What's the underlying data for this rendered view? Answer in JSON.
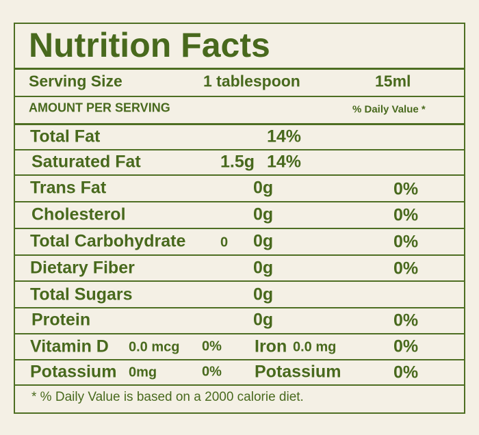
{
  "title": "Nutrition Facts",
  "serving": {
    "label": "Serving Size",
    "amount": "1 tablespoon",
    "volume": "15ml"
  },
  "amount_header": "AMOUNT PER SERVING",
  "dv_header": "% Daily Value *",
  "rows": [
    [
      "Total Fat",
      "14%"
    ],
    [
      "Saturated Fat",
      "1.5g",
      "14%"
    ],
    [
      "Trans Fat",
      "0g",
      "0%"
    ],
    [
      "Cholesterol",
      "0g",
      "0%"
    ],
    [
      "Total Carbohydrate",
      "0",
      "0g",
      "0%"
    ],
    [
      "Dietary Fiber",
      "0g",
      "0%"
    ],
    [
      "Total Sugars",
      "0g"
    ],
    [
      "Protein",
      "0g",
      "0%"
    ],
    [
      "Vitamin D",
      "0.0 mcg",
      "0%",
      "Iron",
      "0.0 mg",
      "0%"
    ],
    [
      "Potassium",
      "0mg",
      "0%",
      "Potassium",
      "0%"
    ]
  ],
  "footnote": "* % Daily Value is based on a 2000 calorie diet."
}
